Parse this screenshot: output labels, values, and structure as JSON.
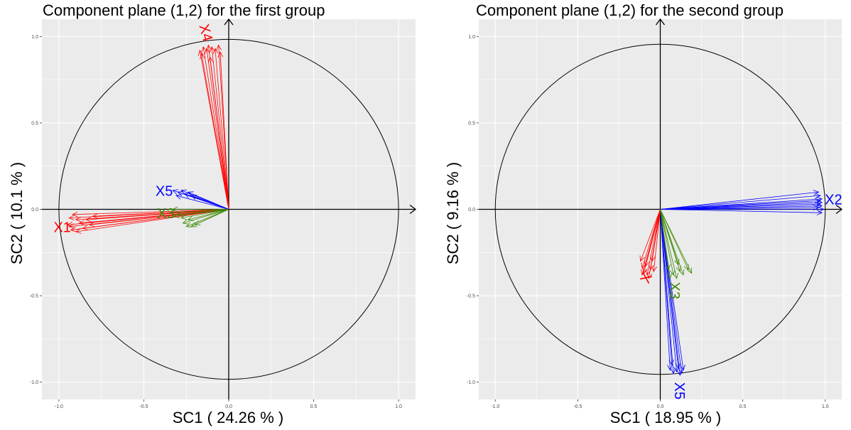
{
  "colors": {
    "panel_bg": "#ebebeb",
    "grid": "#ffffff",
    "red": "#ff0000",
    "green": "#3a8a00",
    "blue": "#0000ff",
    "axis_text": "#4d4d4d"
  },
  "chart_data": [
    {
      "type": "scatter",
      "title": "Component plane (1,2) for the first group",
      "xlabel": "SC1 ( 24.26 % )",
      "ylabel": "SC2 ( 10.1 % )",
      "xlim": [
        -1.1,
        1.1
      ],
      "ylim": [
        -1.1,
        1.1
      ],
      "x_ticks": [
        "-1.0",
        "-0.5",
        "0.0",
        "0.5",
        "1.0"
      ],
      "y_ticks": [
        "-1.0",
        "-0.5",
        "0.0",
        "0.5",
        "1.0"
      ],
      "grid": true,
      "circle_radius": 1.0,
      "groups": [
        {
          "label": "X4",
          "color": "#ff0000",
          "vectors": [
            [
              -0.17,
              0.92
            ],
            [
              -0.15,
              0.94
            ],
            [
              -0.13,
              0.93
            ],
            [
              -0.12,
              0.95
            ],
            [
              -0.1,
              0.94
            ],
            [
              -0.08,
              0.93
            ],
            [
              -0.06,
              0.95
            ],
            [
              -0.05,
              0.91
            ],
            [
              -0.11,
              0.88
            ],
            [
              -0.16,
              0.9
            ]
          ],
          "label_at": [
            -0.14,
            1.02
          ],
          "label_rotate": 75
        },
        {
          "label": "X1",
          "color": "#ff0000",
          "vectors": [
            [
              -0.95,
              -0.09
            ],
            [
              -0.94,
              -0.05
            ],
            [
              -0.92,
              -0.03
            ],
            [
              -0.9,
              -0.06
            ],
            [
              -0.88,
              -0.08
            ],
            [
              -0.86,
              -0.11
            ],
            [
              -0.93,
              -0.12
            ],
            [
              -0.9,
              -0.13
            ],
            [
              -0.84,
              -0.06
            ],
            [
              -0.82,
              -0.09
            ],
            [
              -0.8,
              -0.04
            ],
            [
              -0.94,
              -0.1
            ]
          ],
          "label_at": [
            -0.98,
            -0.11
          ],
          "label_rotate": 0
        },
        {
          "label": "X5",
          "color": "#0000ff",
          "vectors": [
            [
              -0.33,
              0.11
            ],
            [
              -0.3,
              0.1
            ],
            [
              -0.28,
              0.11
            ],
            [
              -0.26,
              0.09
            ],
            [
              -0.24,
              0.1
            ],
            [
              -0.31,
              0.08
            ],
            [
              -0.22,
              0.08
            ]
          ],
          "label_at": [
            -0.38,
            0.1
          ],
          "label_rotate": 0
        },
        {
          "label": "X3",
          "color": "#3a8a00",
          "vectors": [
            [
              -0.35,
              -0.02
            ],
            [
              -0.33,
              0.0
            ],
            [
              -0.3,
              -0.03
            ],
            [
              -0.28,
              -0.05
            ],
            [
              -0.27,
              -0.08
            ],
            [
              -0.25,
              -0.1
            ],
            [
              -0.22,
              -0.1
            ],
            [
              -0.2,
              -0.09
            ],
            [
              -0.32,
              -0.04
            ],
            [
              -0.24,
              -0.06
            ]
          ],
          "label_at": [
            -0.37,
            -0.03
          ],
          "label_rotate": 0
        }
      ]
    },
    {
      "type": "scatter",
      "title": "Component plane (1,2) for the second group",
      "xlabel": "SC1 ( 18.95 % )",
      "ylabel": "SC2 ( 9.16 % )",
      "xlim": [
        -1.1,
        1.1
      ],
      "ylim": [
        -1.1,
        1.1
      ],
      "x_ticks": [
        "-1.0",
        "-0.5",
        "0.0",
        "0.5",
        "1.0"
      ],
      "y_ticks": [
        "-1.0",
        "-0.5",
        "0.0",
        "0.5",
        "1.0"
      ],
      "grid": true,
      "circle_radius": 1.0,
      "groups": [
        {
          "label": "X2",
          "color": "#0000ff",
          "vectors": [
            [
              0.96,
              0.1
            ],
            [
              0.97,
              0.08
            ],
            [
              0.98,
              0.06
            ],
            [
              0.98,
              0.04
            ],
            [
              0.98,
              0.02
            ],
            [
              0.99,
              0.0
            ],
            [
              0.98,
              -0.02
            ],
            [
              0.97,
              0.05
            ],
            [
              0.97,
              0.03
            ],
            [
              0.96,
              0.01
            ]
          ],
          "label_at": [
            1.05,
            0.05
          ],
          "label_rotate": 0
        },
        {
          "label": "X5",
          "color": "#0000ff",
          "vectors": [
            [
              0.06,
              -0.93
            ],
            [
              0.08,
              -0.95
            ],
            [
              0.1,
              -0.94
            ],
            [
              0.12,
              -0.96
            ],
            [
              0.14,
              -0.93
            ],
            [
              0.11,
              -0.92
            ],
            [
              0.07,
              -0.9
            ],
            [
              0.13,
              -0.95
            ]
          ],
          "label_at": [
            0.11,
            -1.05
          ],
          "label_rotate": 90
        },
        {
          "label": "X",
          "color": "#ff0000",
          "vectors": [
            [
              -0.11,
              -0.34
            ],
            [
              -0.1,
              -0.37
            ],
            [
              -0.08,
              -0.38
            ],
            [
              -0.06,
              -0.35
            ],
            [
              -0.05,
              -0.3
            ],
            [
              -0.12,
              -0.3
            ],
            [
              -0.09,
              -0.33
            ],
            [
              -0.04,
              -0.36
            ],
            [
              -0.07,
              -0.4
            ],
            [
              -0.11,
              -0.38
            ]
          ],
          "label_at": [
            -0.08,
            -0.4
          ],
          "label_rotate": -65
        },
        {
          "label": "X3",
          "color": "#3a8a00",
          "vectors": [
            [
              0.06,
              -0.4
            ],
            [
              0.08,
              -0.38
            ],
            [
              0.1,
              -0.4
            ],
            [
              0.12,
              -0.36
            ],
            [
              0.14,
              -0.38
            ],
            [
              0.17,
              -0.35
            ],
            [
              0.19,
              -0.37
            ],
            [
              0.05,
              -0.35
            ],
            [
              0.11,
              -0.32
            ]
          ],
          "label_at": [
            0.08,
            -0.47
          ],
          "label_rotate": 90
        }
      ]
    }
  ]
}
